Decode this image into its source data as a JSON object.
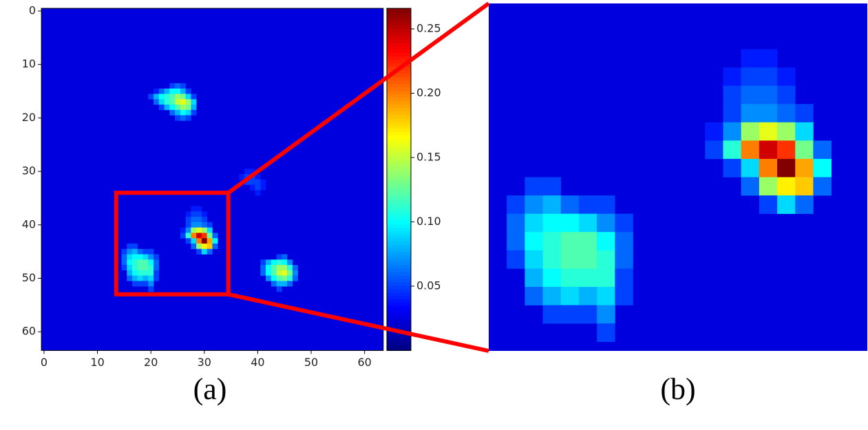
{
  "chart_data": {
    "type": "heatmap",
    "colormap": "jet",
    "xlim": [
      -0.5,
      63.5
    ],
    "ylim": [
      63.5,
      -0.5
    ],
    "xticks": [
      0,
      10,
      20,
      30,
      40,
      50,
      60
    ],
    "yticks": [
      0,
      10,
      20,
      30,
      40,
      50,
      60
    ],
    "clim": [
      0,
      0.266
    ],
    "cticks": [
      0.05,
      {
        "value": 0.1,
        "label": "0.10"
      },
      0.15,
      {
        "value": 0.2,
        "label": "0.20"
      },
      0.25
    ],
    "background": 0.025,
    "cells": [
      [
        24,
        14,
        0.05
      ],
      [
        25,
        14,
        0.06
      ],
      [
        26,
        14,
        0.05
      ],
      [
        21,
        15,
        0.04
      ],
      [
        22,
        15,
        0.06
      ],
      [
        23,
        15,
        0.08
      ],
      [
        24,
        15,
        0.1
      ],
      [
        25,
        15,
        0.1
      ],
      [
        26,
        15,
        0.08
      ],
      [
        27,
        15,
        0.05
      ],
      [
        20,
        16,
        0.05
      ],
      [
        21,
        16,
        0.08
      ],
      [
        22,
        16,
        0.1
      ],
      [
        23,
        16,
        0.11
      ],
      [
        24,
        16,
        0.12
      ],
      [
        25,
        16,
        0.14
      ],
      [
        26,
        16,
        0.13
      ],
      [
        27,
        16,
        0.09
      ],
      [
        28,
        16,
        0.05
      ],
      [
        21,
        17,
        0.06
      ],
      [
        22,
        17,
        0.09
      ],
      [
        23,
        17,
        0.11
      ],
      [
        24,
        17,
        0.12
      ],
      [
        25,
        17,
        0.15
      ],
      [
        26,
        17,
        0.16
      ],
      [
        27,
        17,
        0.14
      ],
      [
        28,
        17,
        0.09
      ],
      [
        22,
        18,
        0.05
      ],
      [
        23,
        18,
        0.08
      ],
      [
        24,
        18,
        0.1
      ],
      [
        25,
        18,
        0.12
      ],
      [
        26,
        18,
        0.14
      ],
      [
        27,
        18,
        0.13
      ],
      [
        28,
        18,
        0.08
      ],
      [
        24,
        19,
        0.06
      ],
      [
        25,
        19,
        0.08
      ],
      [
        26,
        19,
        0.1
      ],
      [
        27,
        19,
        0.09
      ],
      [
        28,
        19,
        0.05
      ],
      [
        25,
        20,
        0.05
      ],
      [
        26,
        20,
        0.06
      ],
      [
        27,
        20,
        0.05
      ],
      [
        38,
        30,
        0.04
      ],
      [
        39,
        30,
        0.04
      ],
      [
        37,
        31,
        0.04
      ],
      [
        38,
        31,
        0.05
      ],
      [
        39,
        31,
        0.05
      ],
      [
        40,
        31,
        0.04
      ],
      [
        38,
        32,
        0.05
      ],
      [
        39,
        32,
        0.05
      ],
      [
        40,
        32,
        0.05
      ],
      [
        41,
        32,
        0.04
      ],
      [
        39,
        33,
        0.04
      ],
      [
        40,
        33,
        0.05
      ],
      [
        41,
        33,
        0.04
      ],
      [
        40,
        34,
        0.04
      ],
      [
        28,
        37,
        0.04
      ],
      [
        29,
        37,
        0.04
      ],
      [
        27,
        38,
        0.04
      ],
      [
        28,
        38,
        0.05
      ],
      [
        29,
        38,
        0.05
      ],
      [
        30,
        38,
        0.04
      ],
      [
        27,
        39,
        0.05
      ],
      [
        28,
        39,
        0.06
      ],
      [
        29,
        39,
        0.06
      ],
      [
        30,
        39,
        0.05
      ],
      [
        27,
        40,
        0.05
      ],
      [
        28,
        40,
        0.07
      ],
      [
        29,
        40,
        0.07
      ],
      [
        30,
        40,
        0.06
      ],
      [
        31,
        40,
        0.05
      ],
      [
        26,
        41,
        0.04
      ],
      [
        27,
        41,
        0.07
      ],
      [
        28,
        41,
        0.14
      ],
      [
        29,
        41,
        0.16
      ],
      [
        30,
        41,
        0.14
      ],
      [
        31,
        41,
        0.09
      ],
      [
        26,
        42,
        0.05
      ],
      [
        27,
        42,
        0.11
      ],
      [
        28,
        42,
        0.2
      ],
      [
        29,
        42,
        0.245
      ],
      [
        30,
        42,
        0.22
      ],
      [
        31,
        42,
        0.13
      ],
      [
        32,
        42,
        0.06
      ],
      [
        27,
        43,
        0.05
      ],
      [
        28,
        43,
        0.09
      ],
      [
        29,
        43,
        0.2
      ],
      [
        30,
        43,
        0.265
      ],
      [
        31,
        43,
        0.19
      ],
      [
        32,
        43,
        0.1
      ],
      [
        28,
        44,
        0.06
      ],
      [
        29,
        44,
        0.14
      ],
      [
        30,
        44,
        0.17
      ],
      [
        31,
        44,
        0.18
      ],
      [
        32,
        44,
        0.06
      ],
      [
        29,
        45,
        0.05
      ],
      [
        30,
        45,
        0.09
      ],
      [
        31,
        45,
        0.06
      ],
      [
        16,
        44,
        0.05
      ],
      [
        17,
        44,
        0.05
      ],
      [
        15,
        45,
        0.05
      ],
      [
        16,
        45,
        0.07
      ],
      [
        17,
        45,
        0.08
      ],
      [
        18,
        45,
        0.06
      ],
      [
        19,
        45,
        0.05
      ],
      [
        20,
        45,
        0.05
      ],
      [
        15,
        46,
        0.06
      ],
      [
        16,
        46,
        0.09
      ],
      [
        17,
        46,
        0.1
      ],
      [
        18,
        46,
        0.1
      ],
      [
        19,
        46,
        0.09
      ],
      [
        20,
        46,
        0.07
      ],
      [
        21,
        46,
        0.05
      ],
      [
        15,
        47,
        0.06
      ],
      [
        16,
        47,
        0.1
      ],
      [
        17,
        47,
        0.11
      ],
      [
        18,
        47,
        0.12
      ],
      [
        19,
        47,
        0.12
      ],
      [
        20,
        47,
        0.1
      ],
      [
        21,
        47,
        0.06
      ],
      [
        15,
        48,
        0.05
      ],
      [
        16,
        48,
        0.09
      ],
      [
        17,
        48,
        0.11
      ],
      [
        18,
        48,
        0.12
      ],
      [
        19,
        48,
        0.12
      ],
      [
        20,
        48,
        0.11
      ],
      [
        21,
        48,
        0.06
      ],
      [
        16,
        49,
        0.08
      ],
      [
        17,
        49,
        0.1
      ],
      [
        18,
        49,
        0.11
      ],
      [
        19,
        49,
        0.11
      ],
      [
        20,
        49,
        0.11
      ],
      [
        21,
        49,
        0.05
      ],
      [
        16,
        50,
        0.06
      ],
      [
        17,
        50,
        0.08
      ],
      [
        18,
        50,
        0.09
      ],
      [
        19,
        50,
        0.08
      ],
      [
        20,
        50,
        0.09
      ],
      [
        21,
        50,
        0.05
      ],
      [
        17,
        51,
        0.05
      ],
      [
        18,
        51,
        0.05
      ],
      [
        19,
        51,
        0.05
      ],
      [
        20,
        51,
        0.07
      ],
      [
        20,
        52,
        0.05
      ],
      [
        44,
        46,
        0.05
      ],
      [
        45,
        46,
        0.06
      ],
      [
        41,
        47,
        0.05
      ],
      [
        42,
        47,
        0.08
      ],
      [
        43,
        47,
        0.1
      ],
      [
        44,
        47,
        0.11
      ],
      [
        45,
        47,
        0.1
      ],
      [
        46,
        47,
        0.07
      ],
      [
        41,
        48,
        0.06
      ],
      [
        42,
        48,
        0.1
      ],
      [
        43,
        48,
        0.12
      ],
      [
        44,
        48,
        0.14
      ],
      [
        45,
        48,
        0.14
      ],
      [
        46,
        48,
        0.11
      ],
      [
        47,
        48,
        0.06
      ],
      [
        41,
        49,
        0.06
      ],
      [
        42,
        49,
        0.1
      ],
      [
        43,
        49,
        0.12
      ],
      [
        44,
        49,
        0.15
      ],
      [
        45,
        49,
        0.16
      ],
      [
        46,
        49,
        0.13
      ],
      [
        47,
        49,
        0.07
      ],
      [
        42,
        50,
        0.07
      ],
      [
        43,
        50,
        0.1
      ],
      [
        44,
        50,
        0.12
      ],
      [
        45,
        50,
        0.13
      ],
      [
        46,
        50,
        0.11
      ],
      [
        47,
        50,
        0.06
      ],
      [
        43,
        51,
        0.06
      ],
      [
        44,
        51,
        0.08
      ],
      [
        45,
        51,
        0.08
      ],
      [
        46,
        51,
        0.06
      ],
      [
        44,
        52,
        0.05
      ]
    ],
    "zoom": {
      "xlim": [
        13.5,
        34.5
      ],
      "ylim": [
        53,
        34
      ],
      "color": "#ff0000"
    },
    "panel_labels": [
      "(a)",
      "(b)"
    ]
  }
}
